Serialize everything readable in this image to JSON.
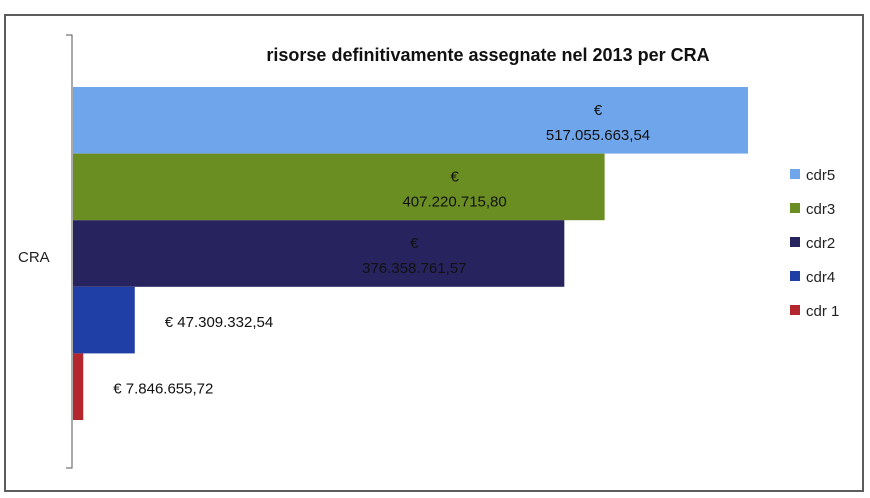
{
  "chart_data": {
    "type": "bar",
    "orientation": "horizontal",
    "title": "risorse definitivamente assegnate nel 2013 per CRA",
    "category_label": "CRA",
    "xlabel": "",
    "ylabel": "",
    "grid": false,
    "legend_position": "right",
    "series": [
      {
        "name": "cdr5",
        "value": 517055663.54,
        "label": "€ 517.055.663,54",
        "color": "#6fa5ea"
      },
      {
        "name": "cdr3",
        "value": 407220715.8,
        "label": "€ 407.220.715,80",
        "color": "#6b8e23"
      },
      {
        "name": "cdr2",
        "value": 376358761.57,
        "label": "€ 376.358.761,57",
        "color": "#26235e"
      },
      {
        "name": "cdr4",
        "value": 47309332.54,
        "label": "€ 47.309.332,54",
        "color": "#1f3ea6"
      },
      {
        "name": "cdr 1",
        "value": 7846655.72,
        "label": "€ 7.846.655,72",
        "color": "#b3262e"
      }
    ]
  }
}
